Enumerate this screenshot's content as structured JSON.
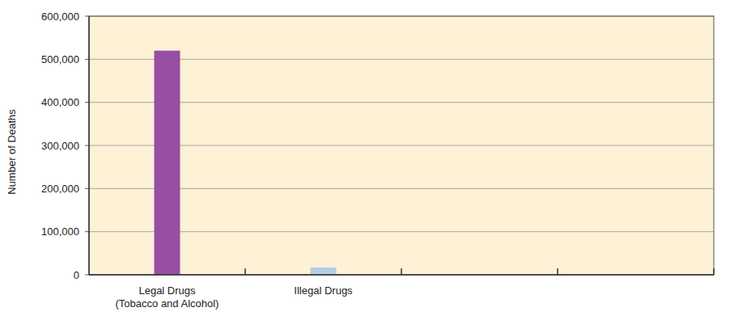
{
  "chart_data": {
    "type": "bar",
    "y_label": "Number of Deaths",
    "categories": [
      "Legal Drugs\n(Tobacco and Alcohol)",
      "Illegal Drugs",
      null,
      null
    ],
    "values": [
      520000,
      17000,
      null,
      null
    ],
    "colors": [
      "#984ea3",
      "#b3d0e6",
      null,
      null
    ],
    "ylim": [
      0,
      600000
    ],
    "yticks": [
      0,
      {
        "value": 100000,
        "label": "100,000"
      },
      {
        "value": 200000,
        "label": "200,000"
      },
      {
        "value": 300000,
        "label": "300,000"
      },
      {
        "value": 400000,
        "label": "400,000"
      },
      {
        "value": 500000,
        "label": "500,000"
      },
      {
        "value": 600000,
        "label": "600,000"
      }
    ],
    "grid": true
  }
}
